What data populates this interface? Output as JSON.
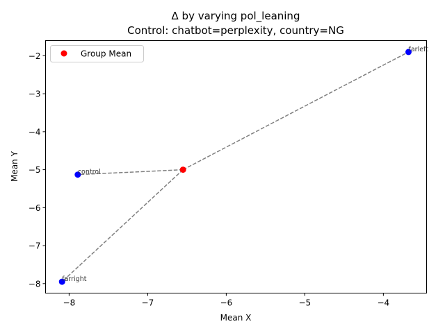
{
  "chart_data": {
    "type": "scatter",
    "title": "Δ by varying pol_leaning",
    "subtitle": "Control: chatbot=perplexity, country=NG",
    "xlabel": "Mean X",
    "ylabel": "Mean Y",
    "xlim": [
      -8.3,
      -3.45
    ],
    "ylim": [
      -8.25,
      -1.6
    ],
    "xticks": [
      -8,
      -7,
      -6,
      -5,
      -4
    ],
    "yticks": [
      -8,
      -7,
      -6,
      -5,
      -4,
      -3,
      -2
    ],
    "xtick_labels": [
      "−8",
      "−7",
      "−6",
      "−5",
      "−4"
    ],
    "ytick_labels": [
      "−8",
      "−7",
      "−6",
      "−5",
      "−4",
      "−3",
      "−2"
    ],
    "grid": false,
    "legend_position": "top-left",
    "group_mean": {
      "name": "Group Mean",
      "x": -6.55,
      "y": -5.0,
      "color": "#ff0000"
    },
    "points": [
      {
        "label": "farleft",
        "x": -3.68,
        "y": -1.9,
        "color": "#0000ff"
      },
      {
        "label": "control",
        "x": -7.89,
        "y": -5.13,
        "color": "#0000ff"
      },
      {
        "label": "farright",
        "x": -8.09,
        "y": -7.95,
        "color": "#0000ff"
      }
    ],
    "line_color": "#808080"
  }
}
